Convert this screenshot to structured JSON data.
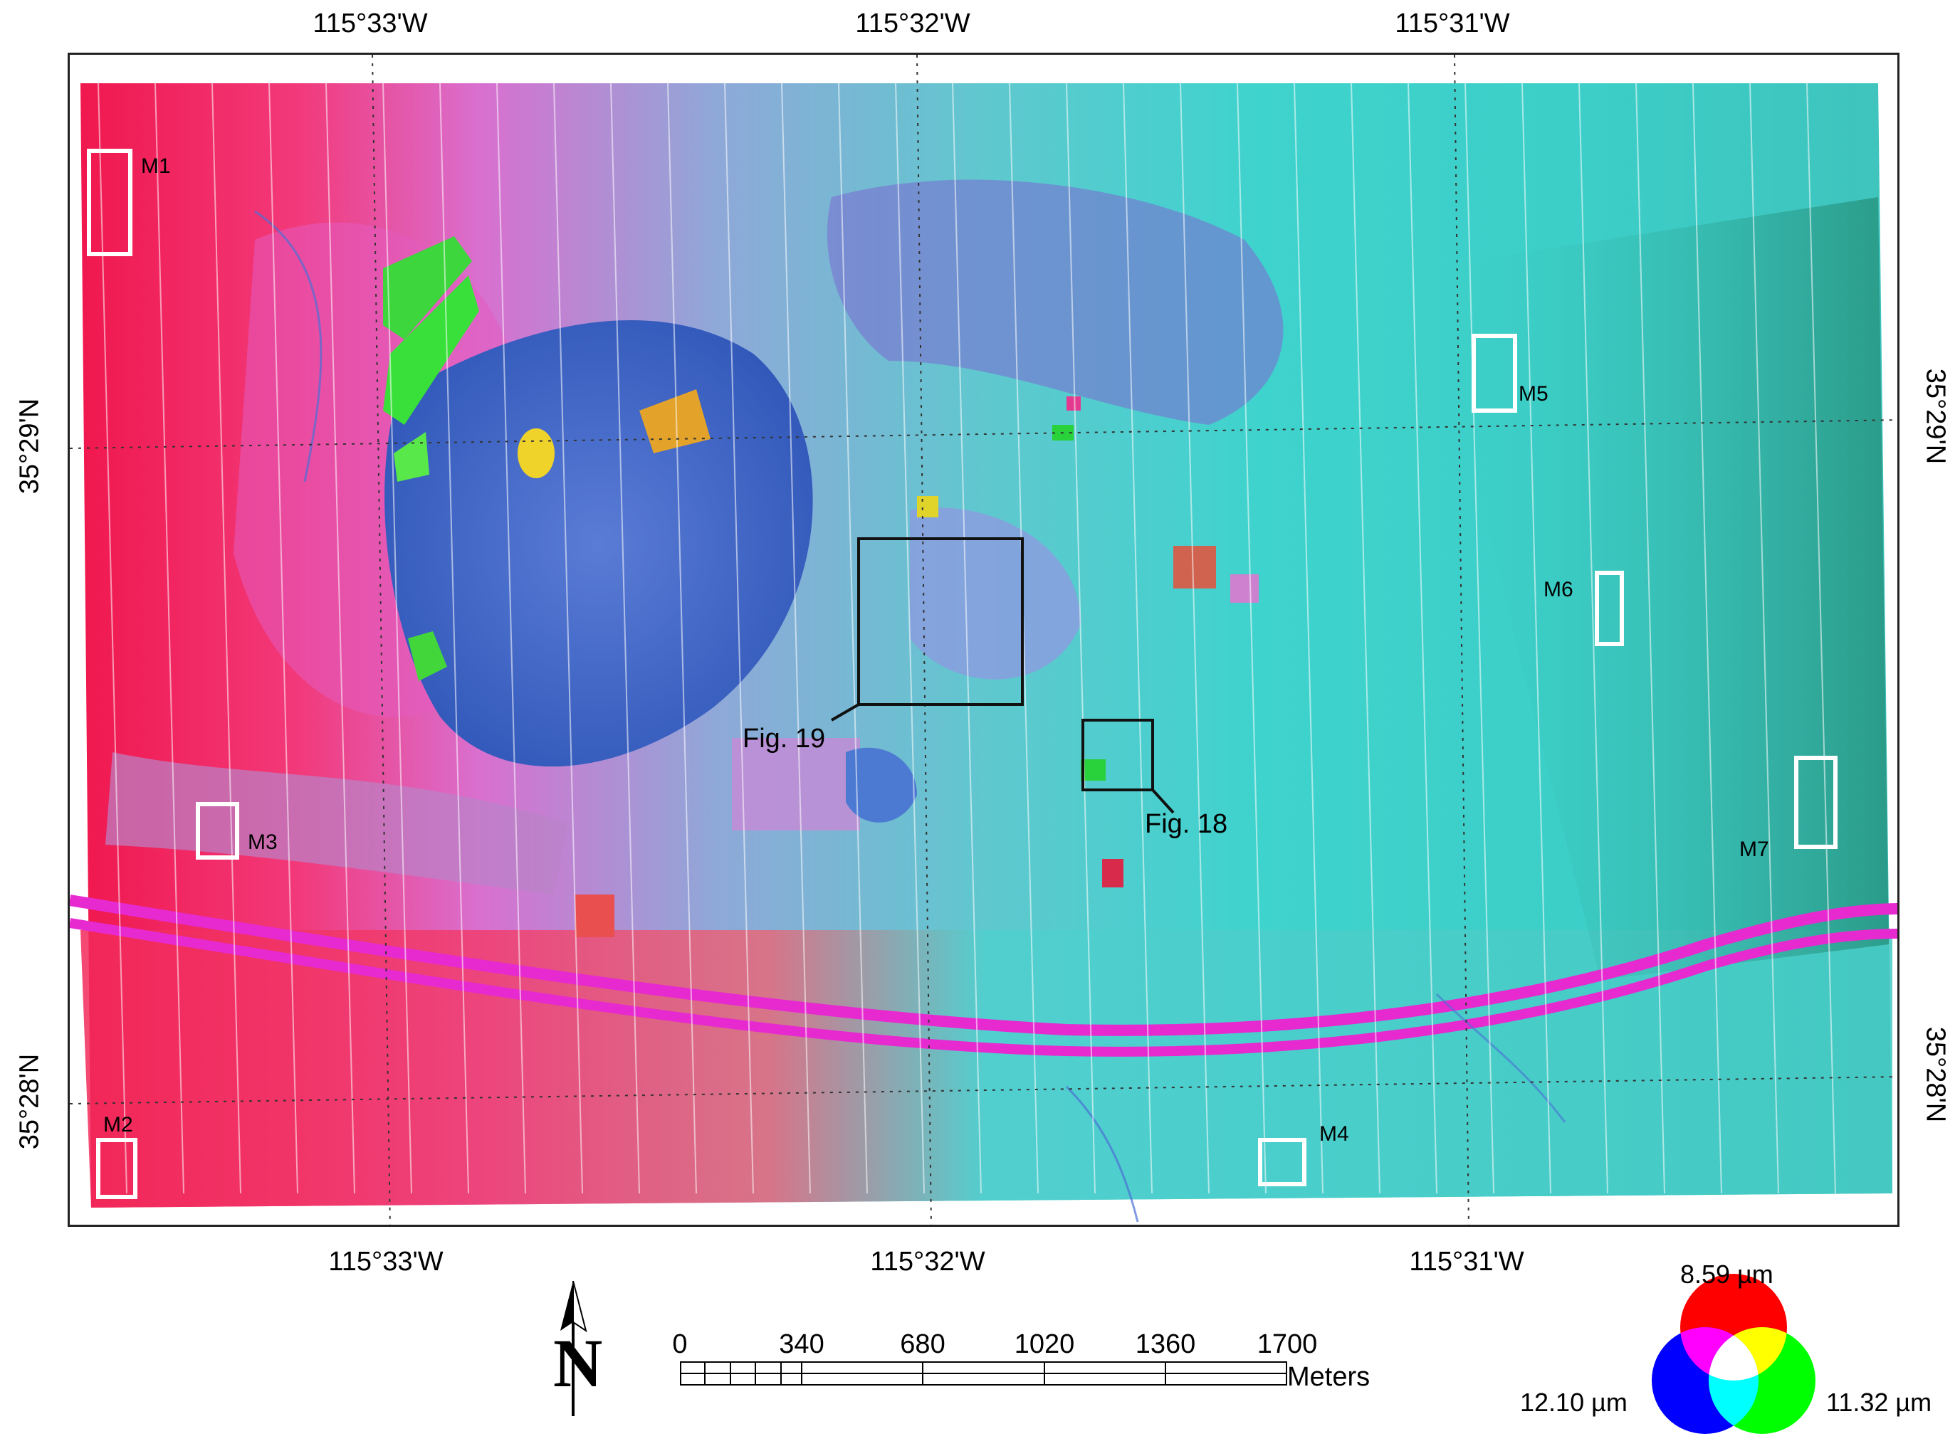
{
  "graticule": {
    "top_lon": [
      "115°33'W",
      "115°32'W",
      "115°31'W"
    ],
    "bottom_lon": [
      "115°33'W",
      "115°32'W",
      "115°31'W"
    ],
    "left_lat": [
      "35°29'N",
      "35°28'N"
    ],
    "right_lat": [
      "35°29'N",
      "35°28'N"
    ]
  },
  "mine_boxes": [
    {
      "id": "m1",
      "label": "M1"
    },
    {
      "id": "m2",
      "label": "M2"
    },
    {
      "id": "m3",
      "label": "M3"
    },
    {
      "id": "m4",
      "label": "M4"
    },
    {
      "id": "m5",
      "label": "M5"
    },
    {
      "id": "m6",
      "label": "M6"
    },
    {
      "id": "m7",
      "label": "M7"
    }
  ],
  "figure_boxes": [
    {
      "id": "fig19",
      "label": "Fig. 19"
    },
    {
      "id": "fig18",
      "label": "Fig. 18"
    }
  ],
  "scale_bar": {
    "ticks": [
      "0",
      "340",
      "680",
      "1020",
      "1360",
      "1700"
    ],
    "unit": "Meters"
  },
  "north_arrow": {
    "letter": "N",
    "icon": "north-arrow-icon"
  },
  "rgb_legend": {
    "red": {
      "label": "8.59 µm",
      "color": "#ff0000"
    },
    "green": {
      "label": "11.32 µm",
      "color": "#00ff00"
    },
    "blue": {
      "label": "12.10 µm",
      "color": "#0000ff"
    }
  }
}
